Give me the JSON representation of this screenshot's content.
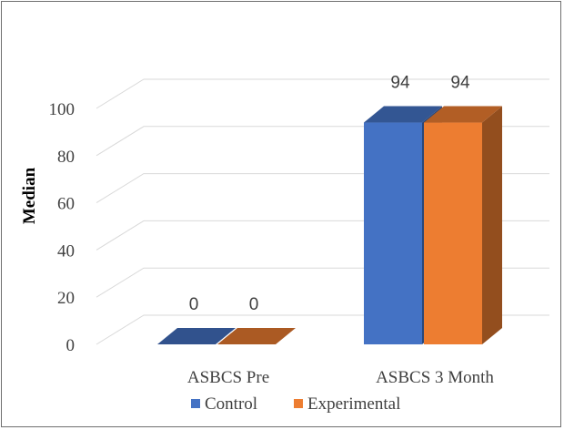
{
  "chart_data": {
    "type": "bar",
    "categories": [
      "ASBCS Pre",
      "ASBCS 3 Month"
    ],
    "series": [
      {
        "name": "Control",
        "values": [
          0,
          94
        ],
        "color": "#4472c4"
      },
      {
        "name": "Experimental",
        "values": [
          0,
          94
        ],
        "color": "#ed7d31"
      }
    ],
    "data_labels": [
      [
        "0",
        "0"
      ],
      [
        "94",
        "94"
      ]
    ],
    "ylabel": "Median",
    "yticks": [
      "0",
      "20",
      "40",
      "60",
      "80",
      "100"
    ],
    "ylim": [
      0,
      110
    ],
    "grid": true,
    "legend_position": "bottom",
    "style": "3d-clustered-column"
  }
}
